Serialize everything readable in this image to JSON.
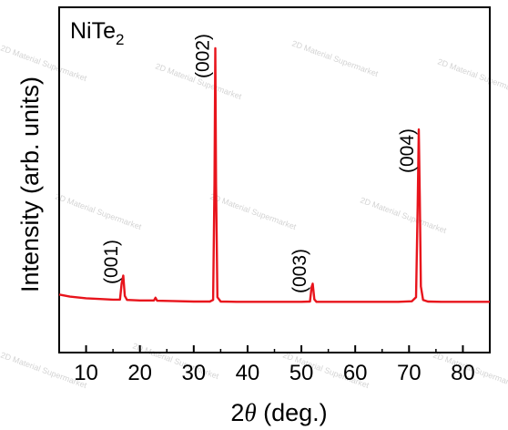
{
  "chart_data": {
    "type": "line",
    "sample_label": {
      "main": "NiTe",
      "subscript": "2"
    },
    "xlabel": {
      "symbol_prefix": "2",
      "symbol": "θ",
      "unit": " (deg.)"
    },
    "ylabel": "Intensity (arb. units)",
    "xlim": [
      5,
      85
    ],
    "ylim": [
      0,
      1.0
    ],
    "x_ticks": [
      10,
      20,
      30,
      40,
      50,
      60,
      70,
      80
    ],
    "y_ticks_shown": false,
    "grid": false,
    "legend": "none",
    "line_color": "#e8141c",
    "series": [
      {
        "x": [
          5,
          7,
          10,
          13,
          15,
          16.3,
          16.6,
          16.9,
          17.2,
          17.6,
          20,
          22.6,
          22.9,
          23.2,
          26,
          30,
          33,
          33.6,
          33.85,
          34.0,
          34.15,
          34.4,
          35,
          38,
          42,
          46,
          50,
          51.6,
          51.9,
          52.1,
          52.4,
          52.8,
          56,
          60,
          64,
          68,
          70.5,
          71.3,
          71.6,
          71.8,
          72.0,
          72.2,
          72.6,
          73.5,
          76,
          80,
          85
        ],
        "values": [
          0.09,
          0.082,
          0.076,
          0.073,
          0.071,
          0.071,
          0.13,
          0.16,
          0.085,
          0.07,
          0.068,
          0.068,
          0.078,
          0.067,
          0.066,
          0.064,
          0.064,
          0.07,
          0.5,
          1.0,
          0.5,
          0.08,
          0.064,
          0.063,
          0.063,
          0.063,
          0.063,
          0.064,
          0.118,
          0.13,
          0.072,
          0.063,
          0.063,
          0.063,
          0.063,
          0.063,
          0.065,
          0.08,
          0.42,
          0.7,
          0.45,
          0.12,
          0.07,
          0.064,
          0.063,
          0.063,
          0.063
        ]
      }
    ],
    "annotations": [
      {
        "text": "(001)",
        "x": 17
      },
      {
        "text": "(002)",
        "x": 34
      },
      {
        "text": "(003)",
        "x": 52
      },
      {
        "text": "(004)",
        "x": 72
      }
    ],
    "watermark": "2D Material Supermarket"
  }
}
